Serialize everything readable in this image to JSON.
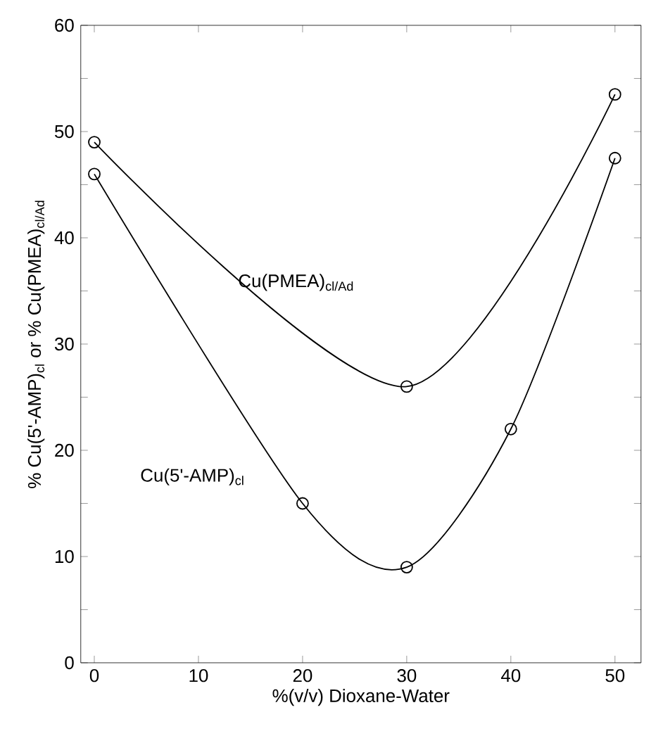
{
  "chart_data": {
    "type": "line",
    "xlabel": "%(v/v) Dioxane-Water",
    "ylabel": "% Cu(5'-AMP)$_{cl}$ or % Cu(PMEA)$_{cl/Ad}$",
    "series": [
      {
        "name": "Cu(PMEA)$_{cl/Ad}$",
        "color": "#000000",
        "x": [
          0,
          30,
          50
        ],
        "values": [
          49,
          26,
          53.5
        ]
      },
      {
        "name": "Cu(5'-AMP)$_{cl}$",
        "color": "#000000",
        "x": [
          0,
          20,
          30,
          40,
          50
        ],
        "values": [
          46,
          15,
          9,
          22,
          47.5
        ]
      }
    ],
    "xlim": [
      -1.3,
      52.5
    ],
    "ylim": [
      0,
      60
    ],
    "xticks": [
      0,
      10,
      20,
      30,
      40,
      50
    ],
    "yticks": [
      0,
      {
        "value": 5,
        "label": null
      },
      10,
      {
        "value": 15,
        "label": null
      },
      20,
      {
        "value": 25,
        "label": null
      },
      30,
      {
        "value": 35,
        "label": null
      },
      40,
      {
        "value": 45,
        "label": null
      },
      50,
      {
        "value": 55,
        "label": null
      },
      60
    ],
    "grid": false,
    "marker": "circle",
    "line_style": "solid"
  }
}
